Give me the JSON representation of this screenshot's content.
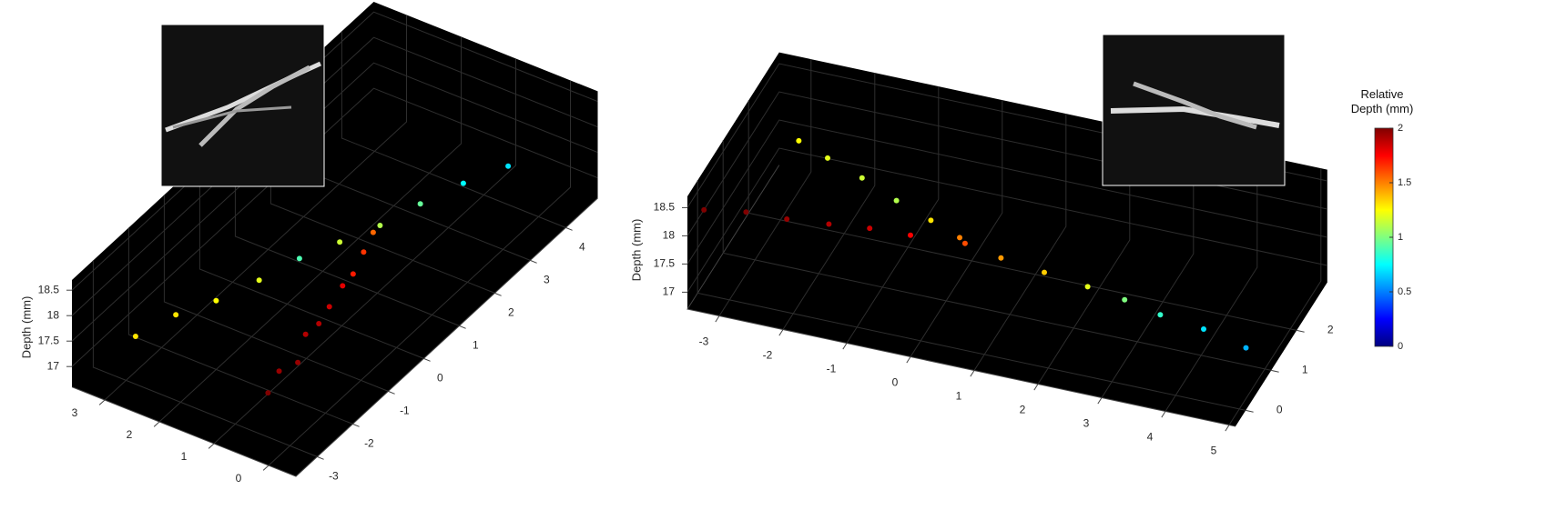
{
  "chart_data": [
    {
      "type": "scatter3d",
      "zlabel": "Depth (mm)",
      "colormap": "jet",
      "clim": [
        0,
        2
      ],
      "xlim": [
        -0.5,
        3.6
      ],
      "xticks": [
        0,
        1,
        2,
        3
      ],
      "ylim": [
        -3.6,
        4.9
      ],
      "yticks": [
        -3,
        -2,
        -1,
        0,
        1,
        2,
        3,
        4
      ],
      "zlim": [
        16.6,
        18.7
      ],
      "zticks": [
        17,
        17.5,
        18,
        18.5
      ],
      "series": [
        {
          "x": [
            0.66,
            0.75,
            0.7,
            0.85,
            0.9,
            1.0,
            1.05,
            1.15,
            1.25,
            1.4
          ],
          "y": [
            -2.6,
            -2.15,
            -1.7,
            -1.25,
            -0.8,
            -0.35,
            0.1,
            0.55,
            1.0,
            1.5
          ],
          "z": [
            17.1,
            17.2,
            17.1,
            17.3,
            17.2,
            17.2,
            17.3,
            17.2,
            17.3,
            17.3
          ],
          "c": [
            2.0,
            1.95,
            1.95,
            1.9,
            1.9,
            1.85,
            1.8,
            1.7,
            1.65,
            1.55
          ]
        },
        {
          "x": [
            2.5,
            2.25,
            2.0,
            1.7,
            1.45,
            1.2,
            0.95,
            0.7,
            0.4,
            0.1
          ],
          "y": [
            -3.5,
            -2.75,
            -2.0,
            -1.25,
            -0.5,
            0.25,
            1.0,
            1.75,
            2.5,
            3.3
          ],
          "z": [
            18.0,
            18.05,
            17.95,
            18.0,
            18.05,
            18.0,
            17.95,
            18.0,
            18.05,
            18.0
          ],
          "c": [
            1.3,
            1.3,
            1.25,
            1.2,
            0.9,
            1.15,
            1.1,
            0.95,
            0.75,
            0.7
          ]
        }
      ]
    },
    {
      "type": "scatter3d",
      "zlabel": "Depth (mm)",
      "colormap": "jet",
      "clim": [
        0,
        2
      ],
      "xlim": [
        -3.5,
        5.1
      ],
      "xticks": [
        -3,
        -2,
        -1,
        0,
        1,
        2,
        3,
        4,
        5
      ],
      "ylim": [
        -0.4,
        3.2
      ],
      "yticks": [
        0,
        1,
        2
      ],
      "zlim": [
        16.7,
        18.7
      ],
      "zticks": [
        17,
        17.5,
        18,
        18.5
      ],
      "colorbar": {
        "title": "Relative Depth (mm)",
        "ticks": [
          0,
          0.5,
          1,
          1.5,
          2
        ]
      },
      "series": [
        {
          "x": [
            -3.4,
            -2.8,
            -2.2,
            -1.6,
            -1.0,
            -0.4,
            0.4,
            1.0,
            1.7,
            2.4,
            3.0,
            3.6,
            4.3,
            5.0
          ],
          "y": [
            0.0,
            0.15,
            0.25,
            0.4,
            0.5,
            0.6,
            0.74,
            0.65,
            0.6,
            0.55,
            0.5,
            0.4,
            0.35,
            0.26
          ],
          "z": [
            18.2,
            18.2,
            18.15,
            18.1,
            18.1,
            18.05,
            18.0,
            17.95,
            17.9,
            17.85,
            17.8,
            17.75,
            17.7,
            17.6
          ],
          "c": [
            2.0,
            2.0,
            1.95,
            1.9,
            1.85,
            1.75,
            1.6,
            1.45,
            1.35,
            1.2,
            1.0,
            0.85,
            0.7,
            0.6
          ]
        },
        {
          "x": [
            -2.5,
            -2.0,
            -1.4,
            -0.8,
            -0.2,
            0.3
          ],
          "y": [
            1.47,
            1.35,
            1.2,
            1.05,
            0.9,
            0.78
          ],
          "z": [
            18.6,
            18.5,
            18.4,
            18.25,
            18.15,
            18.05
          ],
          "c": [
            1.25,
            1.2,
            1.15,
            1.1,
            1.3,
            1.5
          ]
        }
      ]
    }
  ]
}
